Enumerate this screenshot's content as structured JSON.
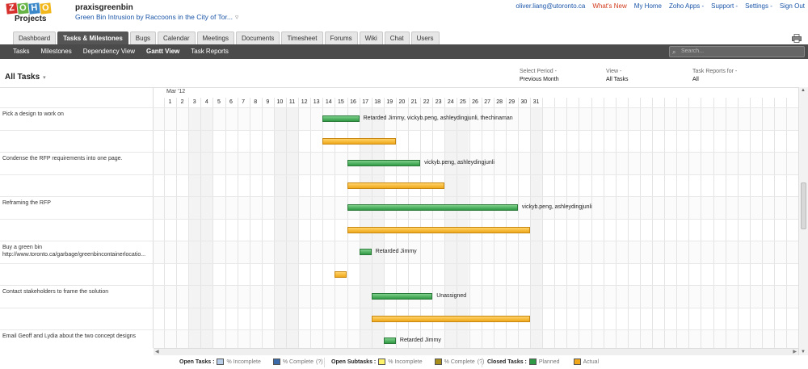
{
  "app": {
    "logo_letters": [
      "Z",
      "O",
      "H",
      "O"
    ],
    "product": "Projects",
    "project_name": "praxisgreenbin",
    "project_subtitle": "Green Bin Intrusion by Raccoons in the City of Tor...",
    "top_links": [
      "oliver.liang@utoronto.ca",
      "What's New",
      "My Home",
      "Zoho Apps -",
      "Support -",
      "Settings -",
      "Sign Out"
    ]
  },
  "tabs": [
    "Dashboard",
    "Tasks & Milestones",
    "Bugs",
    "Calendar",
    "Meetings",
    "Documents",
    "Timesheet",
    "Forums",
    "Wiki",
    "Chat",
    "Users"
  ],
  "active_tab": "Tasks & Milestones",
  "subnav": [
    "Tasks",
    "Milestones",
    "Dependency View",
    "Gantt View",
    "Task Reports"
  ],
  "active_subnav": "Gantt View",
  "search": {
    "placeholder": "Search..."
  },
  "filters": {
    "title": "All Tasks",
    "period_label": "Select Period -",
    "period_value": "Previous Month",
    "view_label": "View -",
    "view_value": "All Tasks",
    "reports_label": "Task Reports for -",
    "reports_value": "All"
  },
  "gantt": {
    "month": "Mar '12",
    "days": [
      "1",
      "2",
      "3",
      "4",
      "5",
      "6",
      "7",
      "8",
      "9",
      "10",
      "11",
      "12",
      "13",
      "14",
      "15",
      "16",
      "17",
      "18",
      "19",
      "20",
      "21",
      "22",
      "23",
      "24",
      "25",
      "26",
      "27",
      "28",
      "29",
      "30",
      "31"
    ],
    "tasks": [
      {
        "name": "Pick a design to work on",
        "planned": [
          14,
          16
        ],
        "actual": [
          14,
          19
        ],
        "owners": "Retarded Jimmy, vickyb.peng, ashleydingjunli, thechinaman"
      },
      {
        "name": "Condense the RFP requirements into one page.",
        "planned": [
          16,
          21
        ],
        "actual": [
          16,
          23
        ],
        "owners": "vickyb.peng, ashleydingjunli"
      },
      {
        "name": "Reframing the RFP",
        "planned": [
          16,
          29
        ],
        "actual": [
          16,
          30
        ],
        "owners": "vickyb.peng, ashleydingjunli"
      },
      {
        "name": "Buy a green bin",
        "name2": "http://www.toronto.ca/garbage/greenbincontainerlocatio...",
        "planned": [
          17,
          17
        ],
        "actual": [
          15,
          15
        ],
        "owners": "Retarded Jimmy"
      },
      {
        "name": "Contact stakeholders to frame the solution",
        "planned": [
          18,
          22
        ],
        "actual": [
          18,
          30
        ],
        "owners": "Unassigned"
      },
      {
        "name": "Email Geoff and Lydia about the two concept designs",
        "planned": [
          19,
          19
        ],
        "actual": null,
        "owners": "Retarded Jimmy"
      }
    ]
  },
  "legend": {
    "open_tasks": "Open Tasks :",
    "pct_incomplete": "% Incomplete",
    "pct_complete": "% Complete",
    "help": "(?)",
    "open_subtasks": "Open Subtasks :",
    "closed_tasks": "Closed Tasks :",
    "planned": "Planned",
    "actual": "Actual",
    "colors": {
      "incomplete": "#b8cde8",
      "complete": "#3a6aa8",
      "sub_incomplete": "#fff36a",
      "sub_complete": "#a88e1a",
      "planned": "#2f9a45",
      "actual": "#f0a81a"
    }
  }
}
